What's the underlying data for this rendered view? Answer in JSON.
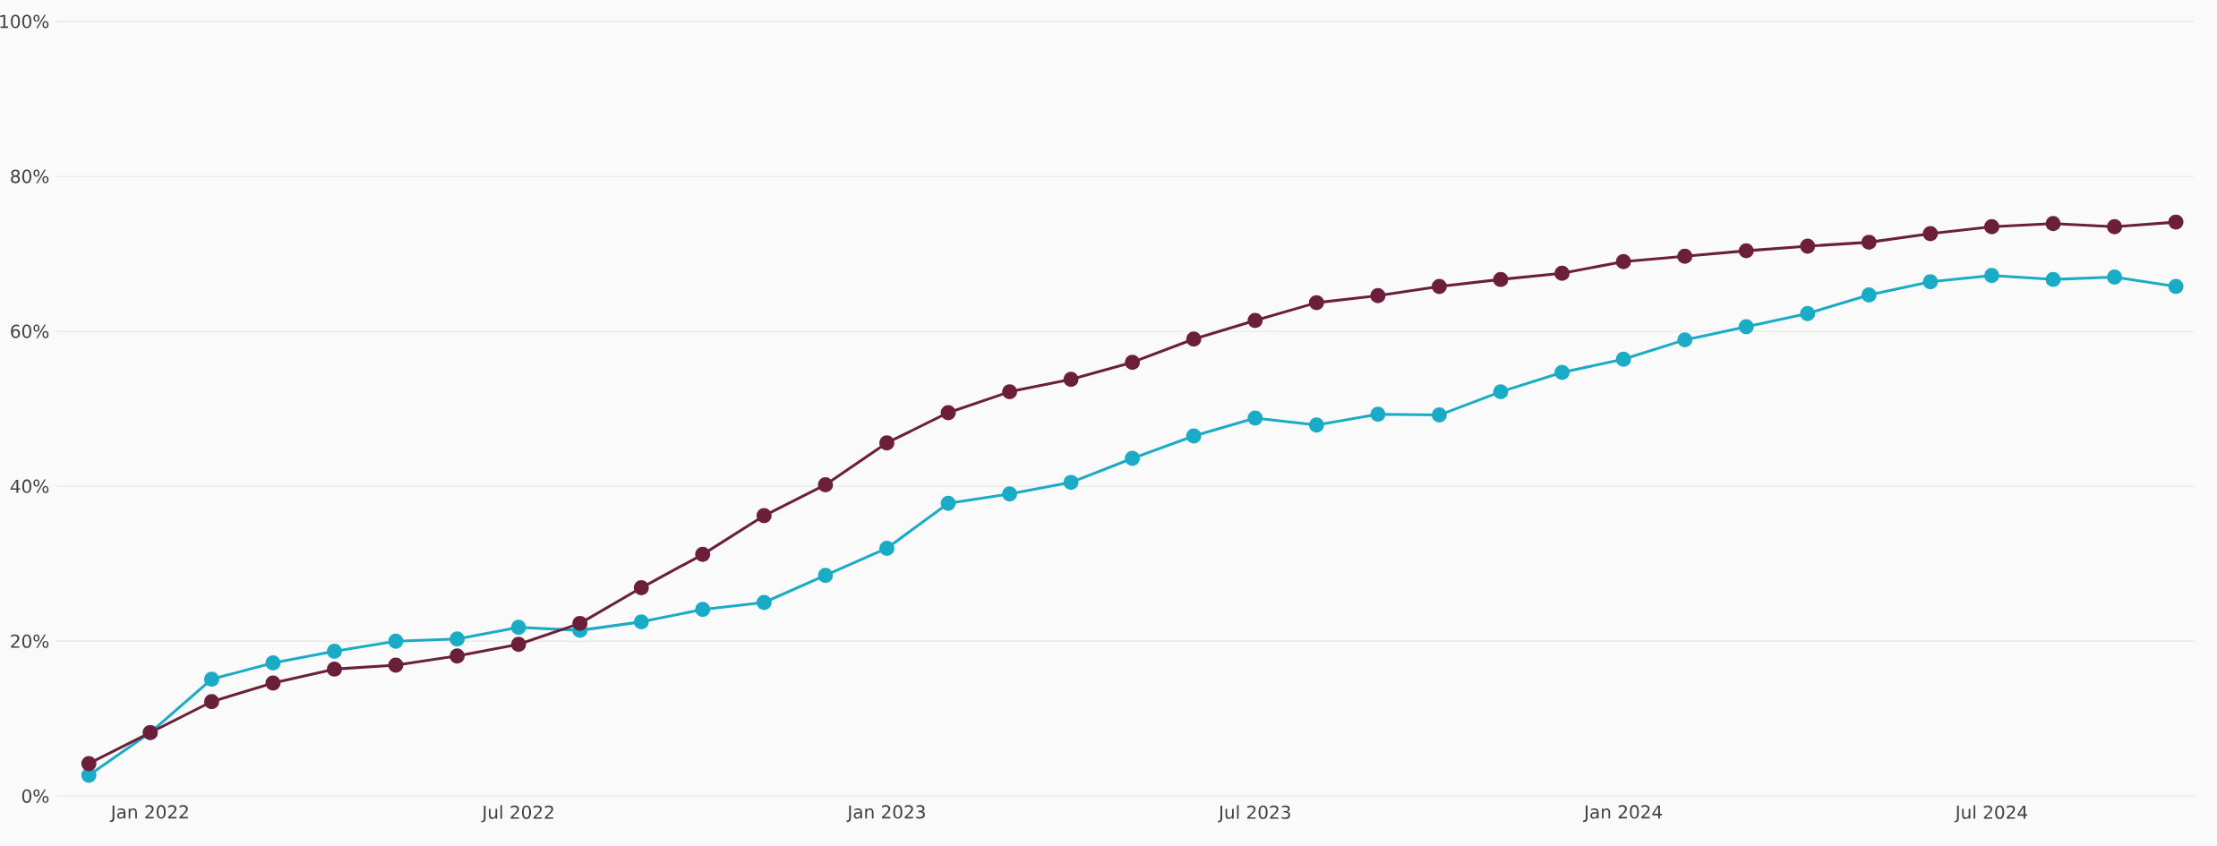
{
  "chart_data": {
    "type": "line",
    "x": [
      "2021-12",
      "2022-01",
      "2022-02",
      "2022-03",
      "2022-04",
      "2022-05",
      "2022-06",
      "2022-07",
      "2022-08",
      "2022-09",
      "2022-10",
      "2022-11",
      "2022-12",
      "2023-01",
      "2023-02",
      "2023-03",
      "2023-04",
      "2023-05",
      "2023-06",
      "2023-07",
      "2023-08",
      "2023-09",
      "2023-10",
      "2023-11",
      "2023-12",
      "2024-01",
      "2024-02",
      "2024-03",
      "2024-04",
      "2024-05",
      "2024-06",
      "2024-07",
      "2024-08",
      "2024-09",
      "2024-10"
    ],
    "series": [
      {
        "color": "#1aabc6",
        "values": [
          2.7,
          8.2,
          15.1,
          17.2,
          18.7,
          20.0,
          20.3,
          21.8,
          21.4,
          22.5,
          24.1,
          25.0,
          28.5,
          32.0,
          37.8,
          39.0,
          40.5,
          43.6,
          46.5,
          48.8,
          47.9,
          49.3,
          49.2,
          52.2,
          54.7,
          56.4,
          58.9,
          60.6,
          62.3,
          64.7,
          66.4,
          67.2,
          66.7,
          67.0,
          65.8
        ]
      },
      {
        "color": "#6b1f3a",
        "values": [
          4.2,
          8.2,
          12.2,
          14.6,
          16.4,
          16.9,
          18.1,
          19.6,
          22.3,
          26.9,
          31.2,
          36.2,
          40.2,
          45.6,
          49.5,
          52.2,
          53.8,
          56.0,
          59.0,
          61.4,
          63.7,
          64.6,
          65.8,
          66.7,
          67.5,
          69.0,
          69.7,
          70.4,
          71.0,
          71.5,
          72.6,
          73.5,
          73.9,
          73.5,
          74.1
        ]
      }
    ],
    "xlim": [
      "2021-11-15",
      "2024-10-10"
    ],
    "xticks": [
      {
        "value": "2022-01",
        "label": "Jan 2022"
      },
      {
        "value": "2022-07",
        "label": "Jul 2022"
      },
      {
        "value": "2023-01",
        "label": "Jan 2023"
      },
      {
        "value": "2023-07",
        "label": "Jul 2023"
      },
      {
        "value": "2024-01",
        "label": "Jan 2024"
      },
      {
        "value": "2024-07",
        "label": "Jul 2024"
      }
    ],
    "ylim": [
      0,
      100
    ],
    "yticks": [
      {
        "value": 0,
        "label": "0%"
      },
      {
        "value": 20,
        "label": "20%"
      },
      {
        "value": 40,
        "label": "40%"
      },
      {
        "value": 60,
        "label": "60%"
      },
      {
        "value": 80,
        "label": "80%"
      },
      {
        "value": 100,
        "label": "100%"
      }
    ],
    "grid": "y",
    "marker": "circle",
    "line_style": "solid",
    "legend": false
  }
}
